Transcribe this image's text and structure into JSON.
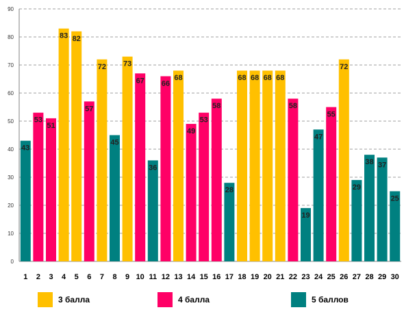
{
  "chart_data": {
    "type": "bar",
    "categories": [
      "1",
      "2",
      "3",
      "4",
      "5",
      "6",
      "7",
      "8",
      "9",
      "10",
      "11",
      "12",
      "13",
      "14",
      "15",
      "16",
      "17",
      "18",
      "19",
      "20",
      "21",
      "22",
      "23",
      "24",
      "25",
      "26",
      "27",
      "28",
      "29",
      "30"
    ],
    "values": [
      43,
      53,
      51,
      83,
      82,
      57,
      72,
      45,
      73,
      67,
      36,
      66,
      68,
      49,
      53,
      58,
      28,
      68,
      68,
      68,
      68,
      58,
      19,
      47,
      55,
      72,
      29,
      38,
      37,
      25
    ],
    "groups": [
      "5 баллов",
      "4 балла",
      "4 балла",
      "3 балла",
      "3 балла",
      "4 балла",
      "3 балла",
      "5 баллов",
      "3 балла",
      "4 балла",
      "5 баллов",
      "4 балла",
      "3 балла",
      "4 балла",
      "4 балла",
      "4 балла",
      "5 баллов",
      "3 балла",
      "3 балла",
      "3 балла",
      "3 балла",
      "4 балла",
      "5 баллов",
      "5 баллов",
      "4 балла",
      "3 балла",
      "5 баллов",
      "5 баллов",
      "5 баллов",
      "5 баллов"
    ],
    "legend": [
      {
        "name": "3 балла",
        "color": "#FFC000"
      },
      {
        "name": "4 балла",
        "color": "#FF0066"
      },
      {
        "name": "5 баллов",
        "color": "#008080"
      }
    ],
    "yticks": [
      "0",
      "10",
      "20",
      "30",
      "40",
      "50",
      "60",
      "70",
      "80",
      "90"
    ],
    "ylim": [
      0,
      90
    ],
    "grid": true,
    "legend_position": "bottom",
    "title": "",
    "xlabel": "",
    "ylabel": ""
  }
}
